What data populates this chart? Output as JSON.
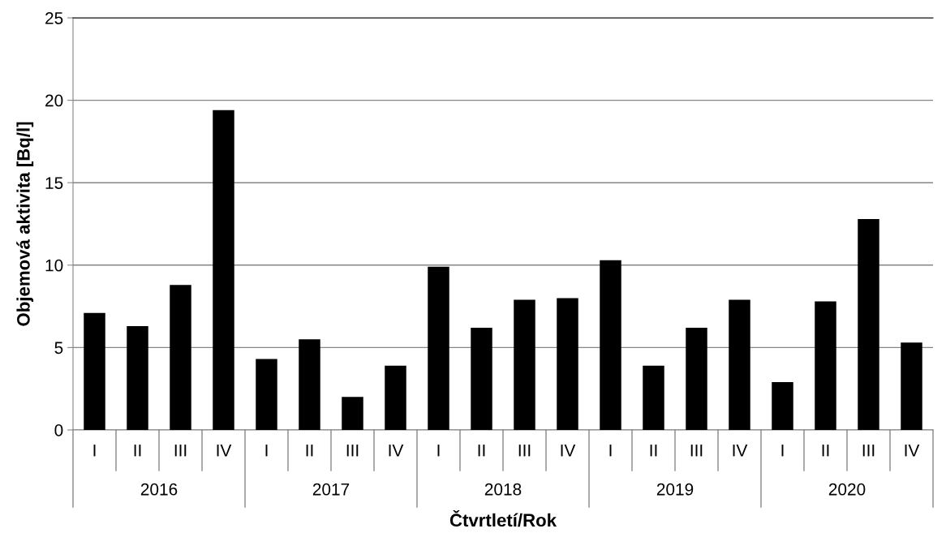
{
  "chart_data": {
    "type": "bar",
    "ylabel": "Objemová aktivita [Bq/l]",
    "xlabel": "Čtvrtletí/Rok",
    "categories": [
      "I",
      "II",
      "III",
      "IV",
      "I",
      "II",
      "III",
      "IV",
      "I",
      "II",
      "III",
      "IV",
      "I",
      "II",
      "III",
      "IV",
      "I",
      "II",
      "III",
      "IV"
    ],
    "values": [
      7.1,
      6.3,
      8.8,
      19.4,
      4.3,
      5.5,
      2.0,
      3.9,
      9.9,
      6.2,
      7.9,
      8.0,
      10.3,
      3.9,
      6.2,
      7.9,
      2.9,
      7.8,
      12.8,
      5.3
    ],
    "color": "#000000",
    "ylim": [
      0,
      25
    ],
    "yticks": [
      0,
      5,
      10,
      15,
      20,
      25
    ],
    "grid": "y",
    "annotations": [
      "2016",
      "2017",
      "2018",
      "2019",
      "2020"
    ]
  }
}
